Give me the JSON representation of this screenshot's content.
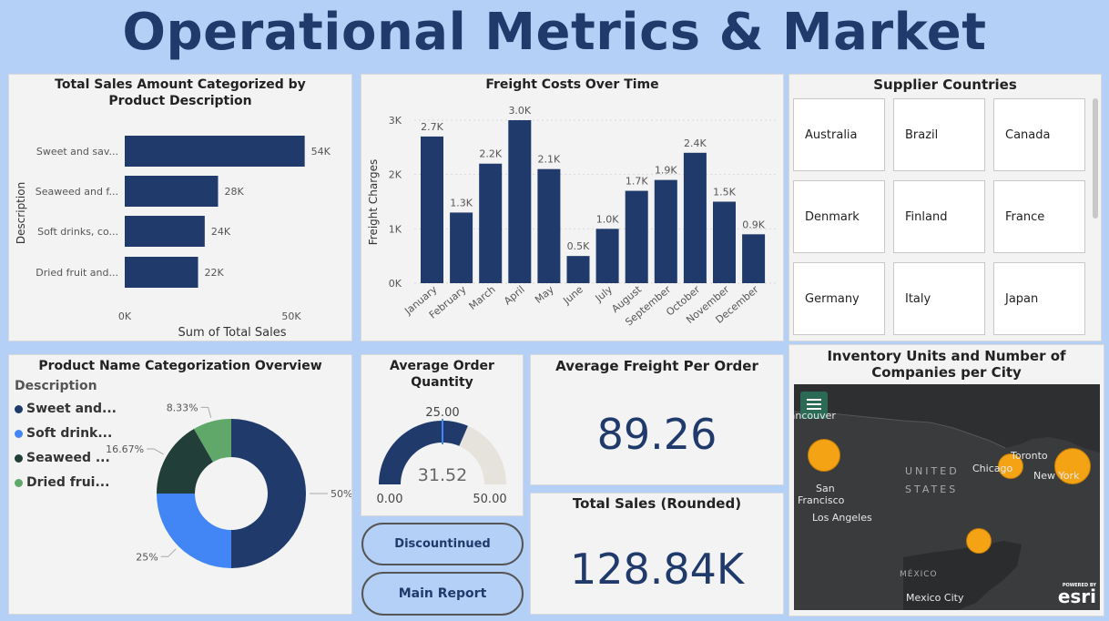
{
  "page_title": "Operational Metrics & Market Analysis",
  "colors": {
    "navy": "#1f3a6b",
    "blue": "#4285f4",
    "dark_green": "#213f38",
    "green": "#5fa86a",
    "bubble": "#f4a315"
  },
  "sales_by_description": {
    "title": "Total Sales Amount Categorized by Product Description",
    "chart_data": {
      "type": "bar",
      "orientation": "horizontal",
      "categories": [
        "Sweet and sav...",
        "Seaweed and f...",
        "Soft drinks, co...",
        "Dried fruit and..."
      ],
      "values": [
        54,
        28,
        24,
        22
      ],
      "data_labels": [
        "54K",
        "28K",
        "24K",
        "22K"
      ],
      "xlabel": "Sum of Total Sales",
      "ylabel": "Description",
      "xlim": [
        0,
        60
      ],
      "x_ticks": [
        {
          "value": 0,
          "label": "0K"
        },
        {
          "value": 50,
          "label": "50K"
        }
      ]
    }
  },
  "freight_over_time": {
    "title": "Freight Costs Over Time",
    "chart_data": {
      "type": "bar",
      "categories": [
        "January",
        "February",
        "March",
        "April",
        "May",
        "June",
        "July",
        "August",
        "September",
        "October",
        "November",
        "December"
      ],
      "values": [
        2.7,
        1.3,
        2.2,
        3.0,
        2.1,
        0.5,
        1.0,
        1.7,
        1.9,
        2.4,
        1.5,
        0.9
      ],
      "data_labels": [
        "2.7K",
        "1.3K",
        "2.2K",
        "3.0K",
        "2.1K",
        "0.5K",
        "1.0K",
        "1.7K",
        "1.9K",
        "2.4K",
        "1.5K",
        "0.9K"
      ],
      "ylabel": "Freight Charges",
      "ylim": [
        0,
        3.2
      ],
      "y_ticks": [
        {
          "value": 0,
          "label": "0K"
        },
        {
          "value": 1,
          "label": "1K"
        },
        {
          "value": 2,
          "label": "2K"
        },
        {
          "value": 3,
          "label": "3K"
        }
      ]
    }
  },
  "supplier_countries": {
    "title": "Supplier Countries",
    "items": [
      "Australia",
      "Brazil",
      "Canada",
      "Denmark",
      "Finland",
      "France",
      "Germany",
      "Italy",
      "Japan"
    ]
  },
  "product_categorization": {
    "title": "Product Name Categorization Overview",
    "legend_title": "Description",
    "chart_data": {
      "type": "pie",
      "style": "donut",
      "labels": [
        "Sweet and...",
        "Soft drink...",
        "Seaweed ...",
        "Dried frui..."
      ],
      "values": [
        50,
        25,
        16.67,
        8.33
      ],
      "data_labels": [
        "50%",
        "25%",
        "16.67%",
        "8.33%"
      ],
      "colors": [
        "#1f3a6b",
        "#4285f4",
        "#213f38",
        "#5fa86a"
      ]
    }
  },
  "avg_order_quantity": {
    "title": "Average Order Quantity",
    "value": "31.52",
    "value_num": 31.52,
    "min": "0.00",
    "max": "50.00",
    "min_num": 0,
    "max_num": 50,
    "target": "25.00",
    "target_num": 25
  },
  "avg_freight": {
    "title": "Average Freight Per Order",
    "value": "89.26"
  },
  "total_sales": {
    "title": "Total Sales (Rounded)",
    "value": "128.84K"
  },
  "buttons": {
    "discontinued": "Discountinued Products",
    "main_report": "Main Report"
  },
  "inventory_map": {
    "title": "Inventory Units and Number of Companies per City",
    "labels": {
      "vancouver": "Vancouver",
      "san_francisco_1": "San",
      "san_francisco_2": "Francisco",
      "los_angeles": "Los Angeles",
      "chicago": "Chicago",
      "toronto": "Toronto",
      "new_york": "New York",
      "united_states_1": "UNITED",
      "united_states_2": "STATES",
      "mexico": "MÉXICO",
      "mexico_city": "Mexico City",
      "esri_small": "POWERED BY",
      "esri": "esri"
    }
  }
}
